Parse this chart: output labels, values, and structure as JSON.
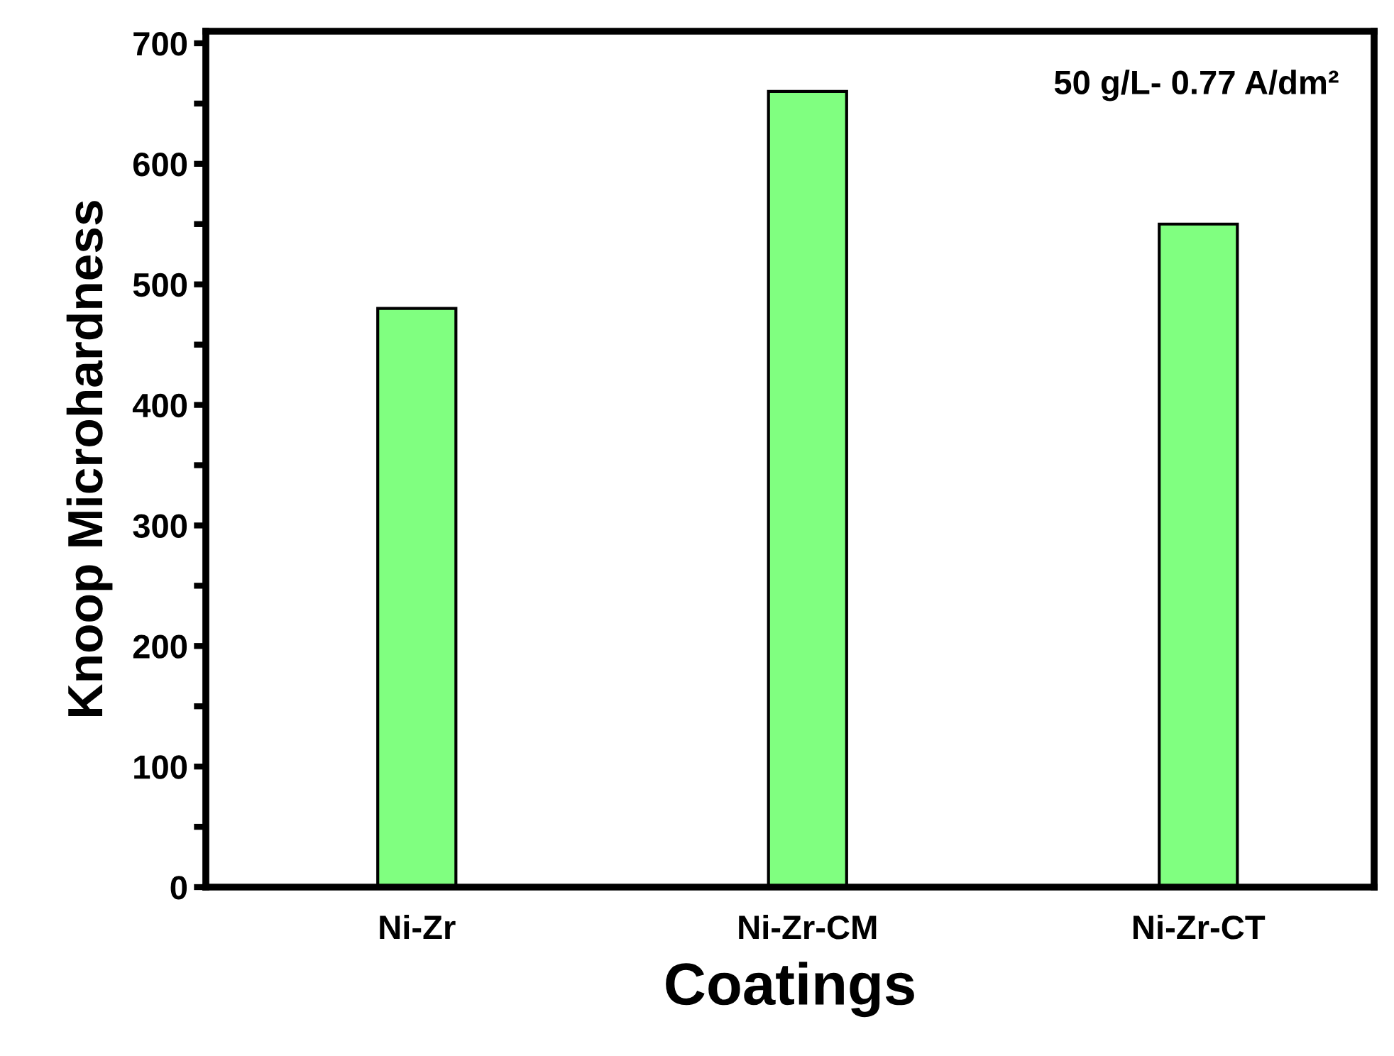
{
  "chart_data": {
    "type": "bar",
    "xlabel": "Coatings",
    "ylabel": "Knoop Microhardness",
    "categories": [
      "Ni-Zr",
      "Ni-Zr-CM",
      "Ni-Zr-CT"
    ],
    "values": [
      480,
      660,
      550
    ],
    "color": "#80ff80",
    "ylim": [
      0,
      710
    ],
    "yticks": [
      0,
      {
        "value": 50,
        "label": null
      },
      100,
      {
        "value": 150,
        "label": null
      },
      200,
      {
        "value": 250,
        "label": null
      },
      300,
      {
        "value": 350,
        "label": null
      },
      400,
      {
        "value": 450,
        "label": null
      },
      500,
      {
        "value": 550,
        "label": null
      },
      600,
      {
        "value": 650,
        "label": null
      },
      700
    ],
    "annotations": [
      "50 g/L- 0.77 A/dm²"
    ],
    "grid": false,
    "legend": false
  }
}
